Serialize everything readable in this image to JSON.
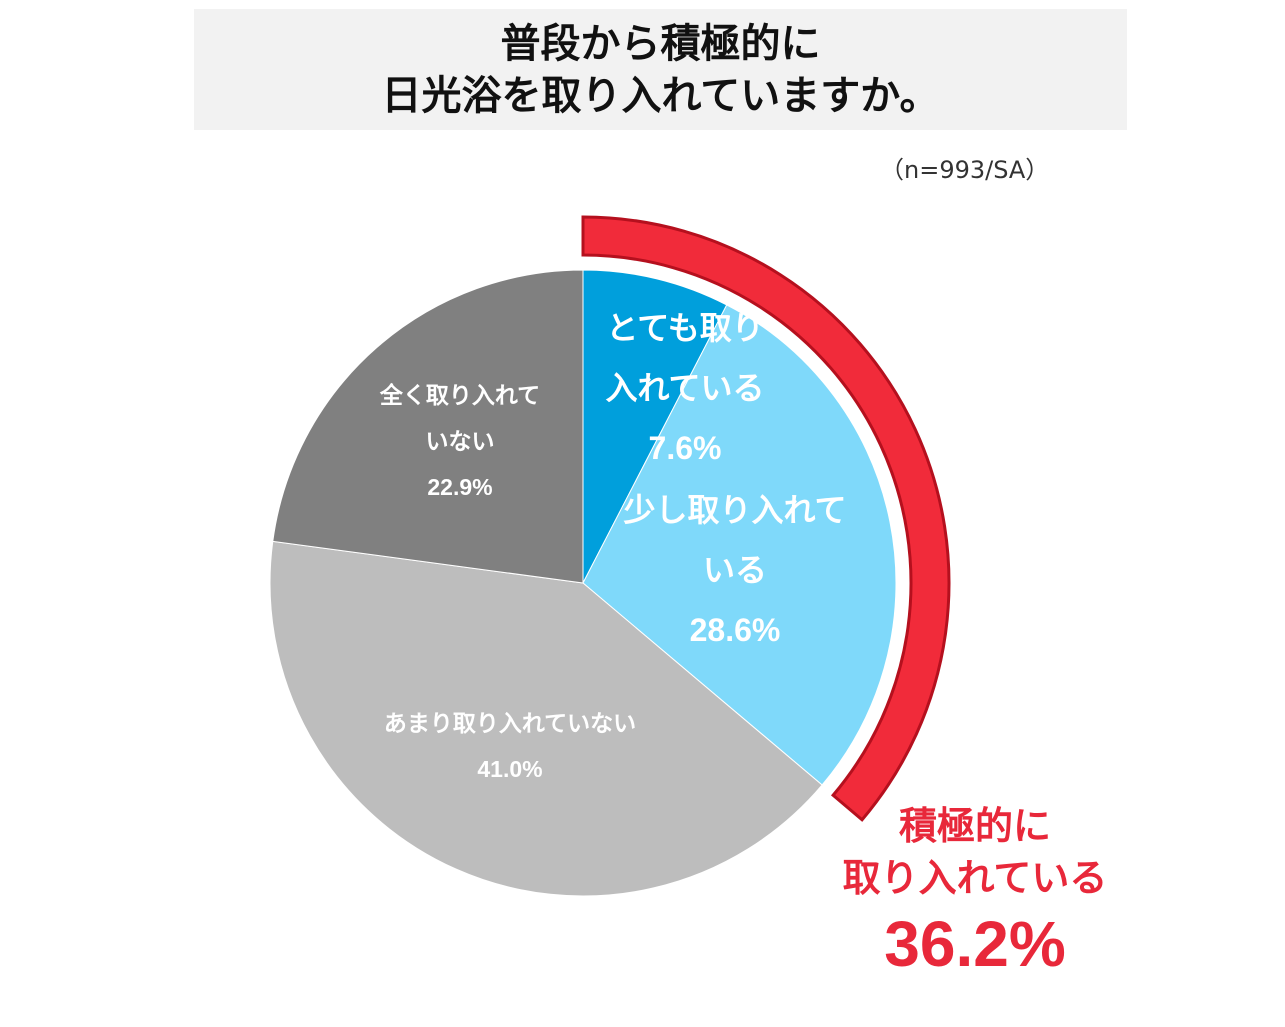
{
  "header": {
    "title_line1": "普段から積極的に",
    "title_line2": "日光浴を取り入れていますか。",
    "note": "（n=993/SA）"
  },
  "chart_data": {
    "type": "pie",
    "title": "普段から積極的に日光浴を取り入れていますか。",
    "slices": [
      {
        "label_lines": [
          "とても取り",
          "入れている"
        ],
        "value": 7.6,
        "value_text": "7.6%",
        "color": "#009fdc"
      },
      {
        "label_lines": [
          "少し取り入れて",
          "いる"
        ],
        "value": 28.6,
        "value_text": "28.6%",
        "color": "#7fd9fa"
      },
      {
        "label_lines": [
          "あまり取り入れていない"
        ],
        "value": 41.0,
        "value_text": "41.0%",
        "color": "#bdbdbd"
      },
      {
        "label_lines": [
          "全く取り入れて",
          "いない"
        ],
        "value": 22.9,
        "value_text": "22.9%",
        "color": "#808080"
      }
    ],
    "highlight": {
      "label_lines": [
        "積極的に",
        "取り入れている"
      ],
      "value": 36.2,
      "value_text": "36.2%",
      "color": "#f12b3a"
    }
  }
}
